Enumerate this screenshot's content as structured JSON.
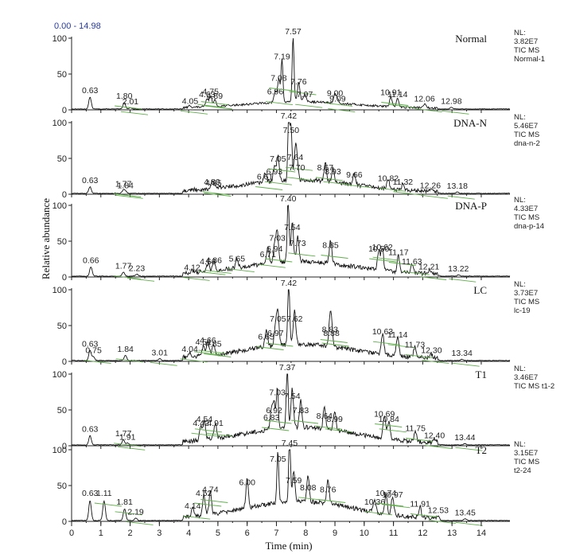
{
  "range_label": "0.00 - 14.98",
  "chart_data": {
    "type": "line",
    "xlabel": "Time (min)",
    "ylabel": "Relative abundance",
    "xlim": [
      0,
      14.98
    ],
    "x_ticks": [
      "0",
      "1",
      "2",
      "3",
      "4",
      "5",
      "6",
      "7",
      "8",
      "9",
      "10",
      "11",
      "12",
      "13",
      "14"
    ],
    "ylim": [
      0,
      100
    ],
    "y_ticks": [
      "0",
      "50",
      "100"
    ],
    "panels": [
      {
        "title": "Normal",
        "info": [
          "NL:",
          "3.82E7",
          "TIC  MS",
          "Normal-1"
        ],
        "peaks": [
          {
            "rt": 0.63,
            "label": "0.63",
            "h": 18
          },
          {
            "rt": 1.8,
            "label": "1.80",
            "h": 10
          },
          {
            "rt": 2.01,
            "label": "2.01",
            "h": 2
          },
          {
            "rt": 4.05,
            "label": "4.05",
            "h": 3
          },
          {
            "rt": 4.63,
            "label": "4.63",
            "h": 12
          },
          {
            "rt": 4.75,
            "label": "4.75",
            "h": 16
          },
          {
            "rt": 4.89,
            "label": "4.89",
            "h": 10
          },
          {
            "rt": 6.96,
            "label": "6.96",
            "h": 16
          },
          {
            "rt": 7.08,
            "label": "7.08",
            "h": 35
          },
          {
            "rt": 7.19,
            "label": "7.19",
            "h": 65
          },
          {
            "rt": 7.57,
            "label": "7.57",
            "h": 100
          },
          {
            "rt": 7.76,
            "label": "7.76",
            "h": 30
          },
          {
            "rt": 7.97,
            "label": "7.97",
            "h": 12
          },
          {
            "rt": 9.0,
            "label": "9.00",
            "h": 14
          },
          {
            "rt": 9.09,
            "label": "9.09",
            "h": 6
          },
          {
            "rt": 10.91,
            "label": "10.91",
            "h": 15
          },
          {
            "rt": 11.14,
            "label": "11.14",
            "h": 12
          },
          {
            "rt": 12.06,
            "label": "12.06",
            "h": 6
          },
          {
            "rt": 12.98,
            "label": "12.98",
            "h": 3
          }
        ]
      },
      {
        "title": "DNA-N",
        "info": [
          "NL:",
          "5.46E7",
          "TIC  MS",
          "dna-n-2"
        ],
        "peaks": [
          {
            "rt": 0.63,
            "label": "0.63",
            "h": 10
          },
          {
            "rt": 1.77,
            "label": "1.77",
            "h": 5
          },
          {
            "rt": 1.84,
            "label": "1.84",
            "h": 3
          },
          {
            "rt": 4.8,
            "label": "4.80",
            "h": 8
          },
          {
            "rt": 4.85,
            "label": "4.85",
            "h": 6
          },
          {
            "rt": 6.61,
            "label": "6.61",
            "h": 15
          },
          {
            "rt": 6.93,
            "label": "6.93",
            "h": 22
          },
          {
            "rt": 7.05,
            "label": "7.05",
            "h": 40
          },
          {
            "rt": 7.42,
            "label": "7.42",
            "h": 100
          },
          {
            "rt": 7.5,
            "label": "7.50",
            "h": 80
          },
          {
            "rt": 7.64,
            "label": "7.64",
            "h": 42
          },
          {
            "rt": 7.7,
            "label": "7.70",
            "h": 28
          },
          {
            "rt": 8.67,
            "label": "8.67",
            "h": 28
          },
          {
            "rt": 8.93,
            "label": "8.93",
            "h": 22
          },
          {
            "rt": 9.66,
            "label": "9.66",
            "h": 18
          },
          {
            "rt": 10.82,
            "label": "10.82",
            "h": 13
          },
          {
            "rt": 11.32,
            "label": "11.32",
            "h": 8
          },
          {
            "rt": 12.26,
            "label": "12.26",
            "h": 3
          },
          {
            "rt": 13.18,
            "label": "13.18",
            "h": 2
          }
        ]
      },
      {
        "title": "DNA-P",
        "info": [
          "NL:",
          "4.33E7",
          "TIC  MS",
          "dna-p-14"
        ],
        "peaks": [
          {
            "rt": 0.66,
            "label": "0.66",
            "h": 14
          },
          {
            "rt": 1.77,
            "label": "1.77",
            "h": 6
          },
          {
            "rt": 2.23,
            "label": "2.23",
            "h": 3
          },
          {
            "rt": 4.12,
            "label": "4.12",
            "h": 4
          },
          {
            "rt": 4.66,
            "label": "4.66",
            "h": 12
          },
          {
            "rt": 4.86,
            "label": "4.86",
            "h": 14
          },
          {
            "rt": 5.65,
            "label": "5.65",
            "h": 16
          },
          {
            "rt": 6.71,
            "label": "6.71",
            "h": 22
          },
          {
            "rt": 6.94,
            "label": "6.94",
            "h": 30
          },
          {
            "rt": 7.03,
            "label": "7.03",
            "h": 45
          },
          {
            "rt": 7.4,
            "label": "7.40",
            "h": 100
          },
          {
            "rt": 7.54,
            "label": "7.54",
            "h": 60
          },
          {
            "rt": 7.73,
            "label": "7.73",
            "h": 38
          },
          {
            "rt": 8.85,
            "label": "8.85",
            "h": 35
          },
          {
            "rt": 10.5,
            "label": "10.50",
            "h": 30
          },
          {
            "rt": 10.62,
            "label": "10.62",
            "h": 32
          },
          {
            "rt": 11.17,
            "label": "11.17",
            "h": 25
          },
          {
            "rt": 11.63,
            "label": "11.63",
            "h": 12
          },
          {
            "rt": 12.21,
            "label": "12.21",
            "h": 5
          },
          {
            "rt": 13.22,
            "label": "13.22",
            "h": 2
          }
        ]
      },
      {
        "title": "LC",
        "info": [
          "NL:",
          "3.73E7",
          "TIC  MS",
          "lc-19"
        ],
        "peaks": [
          {
            "rt": 0.63,
            "label": "0.63",
            "h": 15
          },
          {
            "rt": 0.75,
            "label": "0.75",
            "h": 6
          },
          {
            "rt": 1.84,
            "label": "1.84",
            "h": 8
          },
          {
            "rt": 3.01,
            "label": "3.01",
            "h": 3
          },
          {
            "rt": 4.04,
            "label": "4.04",
            "h": 8
          },
          {
            "rt": 4.51,
            "label": "4.51",
            "h": 18
          },
          {
            "rt": 4.66,
            "label": "4.66",
            "h": 20
          },
          {
            "rt": 4.85,
            "label": "4.85",
            "h": 15
          },
          {
            "rt": 6.65,
            "label": "6.65",
            "h": 25
          },
          {
            "rt": 6.97,
            "label": "6.97",
            "h": 30
          },
          {
            "rt": 7.05,
            "label": "7.05",
            "h": 50
          },
          {
            "rt": 7.42,
            "label": "7.42",
            "h": 100
          },
          {
            "rt": 7.62,
            "label": "7.62",
            "h": 50
          },
          {
            "rt": 8.83,
            "label": "8.83",
            "h": 35
          },
          {
            "rt": 8.88,
            "label": "8.88",
            "h": 30
          },
          {
            "rt": 10.63,
            "label": "10.63",
            "h": 32
          },
          {
            "rt": 11.14,
            "label": "11.14",
            "h": 28
          },
          {
            "rt": 11.73,
            "label": "11.73",
            "h": 14
          },
          {
            "rt": 12.3,
            "label": "12.30",
            "h": 6
          },
          {
            "rt": 13.34,
            "label": "13.34",
            "h": 2
          }
        ]
      },
      {
        "title": "T1",
        "info": [
          "NL:",
          "3.46E7",
          "TIC  MS t1-2"
        ],
        "peaks": [
          {
            "rt": 0.63,
            "label": "0.63",
            "h": 14
          },
          {
            "rt": 1.77,
            "label": "1.77",
            "h": 8
          },
          {
            "rt": 1.91,
            "label": "1.91",
            "h": 3
          },
          {
            "rt": 4.42,
            "label": "4.42",
            "h": 22
          },
          {
            "rt": 4.54,
            "label": "4.54",
            "h": 28
          },
          {
            "rt": 4.91,
            "label": "4.91",
            "h": 22
          },
          {
            "rt": 6.83,
            "label": "6.83",
            "h": 30
          },
          {
            "rt": 6.92,
            "label": "6.92",
            "h": 40
          },
          {
            "rt": 7.03,
            "label": "7.03",
            "h": 65
          },
          {
            "rt": 7.37,
            "label": "7.37",
            "h": 100
          },
          {
            "rt": 7.54,
            "label": "7.54",
            "h": 60
          },
          {
            "rt": 7.83,
            "label": "7.83",
            "h": 40
          },
          {
            "rt": 8.64,
            "label": "8.64",
            "h": 32
          },
          {
            "rt": 8.99,
            "label": "8.99",
            "h": 28
          },
          {
            "rt": 10.69,
            "label": "10.69",
            "h": 35
          },
          {
            "rt": 10.84,
            "label": "10.84",
            "h": 28
          },
          {
            "rt": 11.75,
            "label": "11.75",
            "h": 15
          },
          {
            "rt": 12.4,
            "label": "12.40",
            "h": 5
          },
          {
            "rt": 13.44,
            "label": "13.44",
            "h": 2
          }
        ]
      },
      {
        "title": "T2",
        "info": [
          "NL:",
          "3.15E7",
          "TIC  MS",
          "t2-24"
        ],
        "peaks": [
          {
            "rt": 0.63,
            "label": "0.63",
            "h": 30
          },
          {
            "rt": 1.11,
            "label": "1.11",
            "h": 30
          },
          {
            "rt": 1.81,
            "label": "1.81",
            "h": 18
          },
          {
            "rt": 2.19,
            "label": "2.19",
            "h": 4
          },
          {
            "rt": 4.14,
            "label": "4.14",
            "h": 12
          },
          {
            "rt": 4.52,
            "label": "4.52",
            "h": 30
          },
          {
            "rt": 4.74,
            "label": "4.74",
            "h": 35
          },
          {
            "rt": 6.0,
            "label": "6.00",
            "h": 45
          },
          {
            "rt": 7.05,
            "label": "7.05",
            "h": 78
          },
          {
            "rt": 7.45,
            "label": "7.45",
            "h": 100
          },
          {
            "rt": 7.59,
            "label": "7.59",
            "h": 48
          },
          {
            "rt": 8.08,
            "label": "8.08",
            "h": 38
          },
          {
            "rt": 8.76,
            "label": "8.76",
            "h": 35
          },
          {
            "rt": 10.36,
            "label": "10.36",
            "h": 18
          },
          {
            "rt": 10.74,
            "label": "10.74",
            "h": 30
          },
          {
            "rt": 10.97,
            "label": "10.97",
            "h": 28
          },
          {
            "rt": 11.91,
            "label": "11.91",
            "h": 15
          },
          {
            "rt": 12.53,
            "label": "12.53",
            "h": 6
          },
          {
            "rt": 13.45,
            "label": "13.45",
            "h": 3
          }
        ]
      }
    ]
  }
}
